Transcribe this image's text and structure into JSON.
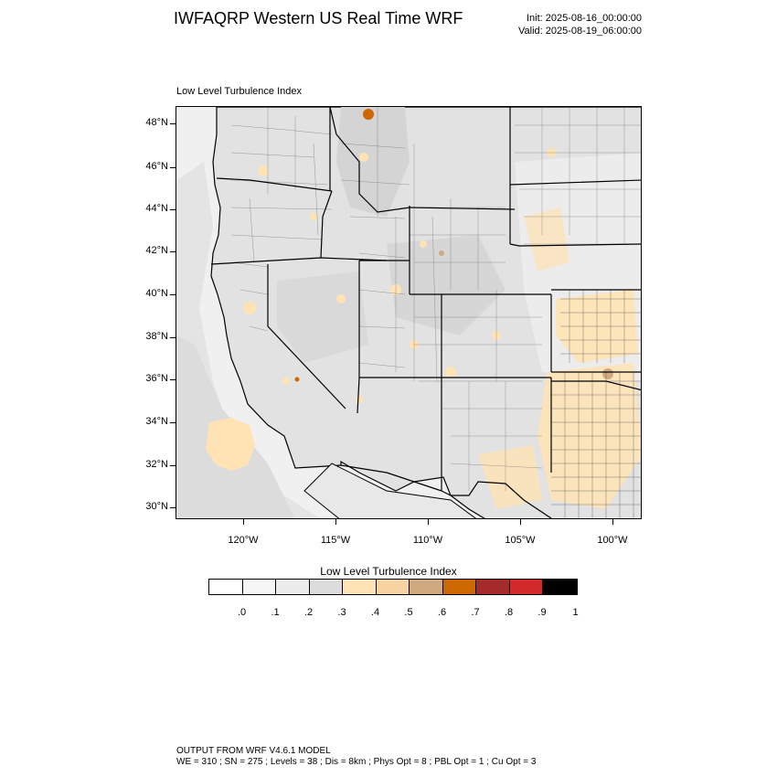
{
  "header": {
    "title": "IWFAQRP Western US Real Time WRF",
    "init": "Init: 2025-08-16_00:00:00",
    "valid": "Valid: 2025-08-19_06:00:00"
  },
  "panel": {
    "title": "Low Level Turbulence Index"
  },
  "axes": {
    "lat_labels": [
      "48°N",
      "46°N",
      "44°N",
      "42°N",
      "40°N",
      "38°N",
      "36°N",
      "34°N",
      "32°N",
      "30°N"
    ],
    "lon_labels": [
      "120°W",
      "115°W",
      "110°W",
      "105°W",
      "100°W"
    ]
  },
  "colorbar": {
    "title": "Low Level Turbulence Index",
    "labels": [
      ".0",
      ".1",
      ".2",
      ".3",
      ".4",
      ".5",
      ".6",
      ".7",
      ".8",
      ".9",
      "1"
    ],
    "colors": [
      "#ffffff",
      "#f6f6f6",
      "#ececec",
      "#dcdcdc",
      "#ffe3b4",
      "#f7d3a2",
      "#cfa980",
      "#cd6700",
      "#a52a2a",
      "#d22a2a",
      "#000000"
    ]
  },
  "map_colors": {
    "ocean": "#f0f0f0",
    "land_base": "#e2e2e2",
    "low_turbulence": "#ffe3b4",
    "mid_turbulence": "#f7d3a2",
    "high_turbulence": "#cd6700",
    "county_lines": "#555555",
    "state_lines": "#000000"
  },
  "footer": {
    "line1": "OUTPUT FROM WRF V4.6.1 MODEL",
    "line2": "WE = 310 ; SN = 275 ; Levels = 38 ; Dis = 8km ; Phys Opt = 8 ; PBL Opt = 1 ; Cu Opt = 3"
  }
}
